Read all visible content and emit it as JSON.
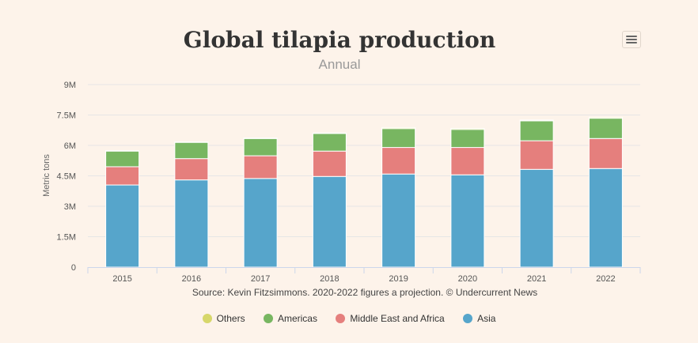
{
  "chart_data": {
    "type": "bar",
    "stacked": true,
    "title": "Global tilapia production",
    "subtitle": "Annual",
    "ylabel": "Metric tons",
    "xlabel": "",
    "ylim": [
      0,
      9000000
    ],
    "yticks": [
      0,
      1500000,
      3000000,
      4500000,
      6000000,
      7500000,
      9000000
    ],
    "ytick_labels": [
      "0",
      "1.5M",
      "3M",
      "4.5M",
      "6M",
      "7.5M",
      "9M"
    ],
    "grid": true,
    "legend_placement": "bottom",
    "categories": [
      "2015",
      "2016",
      "2017",
      "2018",
      "2019",
      "2020",
      "2021",
      "2022"
    ],
    "series": [
      {
        "name": "Asia",
        "color": "#56a5cb",
        "values": [
          4050000,
          4300000,
          4370000,
          4470000,
          4590000,
          4550000,
          4820000,
          4860000
        ]
      },
      {
        "name": "Middle East and Africa",
        "color": "#e57f7d",
        "values": [
          900000,
          1050000,
          1120000,
          1250000,
          1310000,
          1350000,
          1410000,
          1480000
        ]
      },
      {
        "name": "Americas",
        "color": "#78b661",
        "values": [
          770000,
          800000,
          850000,
          870000,
          930000,
          890000,
          980000,
          1000000
        ]
      },
      {
        "name": "Others",
        "color": "#d7d76a",
        "values": [
          20000,
          20000,
          20000,
          20000,
          50000,
          50000,
          40000,
          50000
        ]
      }
    ]
  },
  "source_note": "Source: Kevin Fitzsimmons. 2020-2022 figures a projection. © Undercurrent News",
  "legend": [
    {
      "label": "Others",
      "color": "#d7d76a"
    },
    {
      "label": "Americas",
      "color": "#78b661"
    },
    {
      "label": "Middle East and Africa",
      "color": "#e57f7d"
    },
    {
      "label": "Asia",
      "color": "#56a5cb"
    }
  ],
  "menu": {
    "icon": "hamburger-menu-icon"
  }
}
